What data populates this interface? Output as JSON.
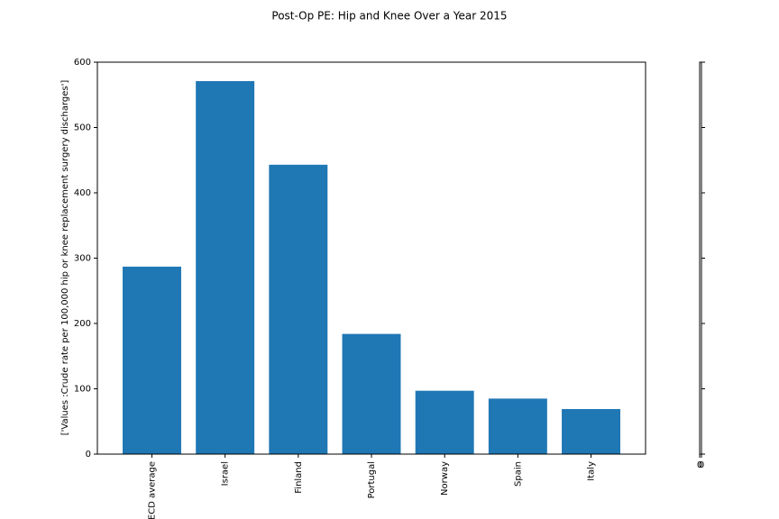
{
  "chart_data": [
    {
      "type": "bar",
      "title": "Post-Op PE: Hip and Knee Over a Year 2015",
      "y_label": "['Values :Crude rate per 100,000 hip or knee replacement surgery discharges']",
      "categories": [
        "OECD average",
        "Israel",
        "Finland",
        "Portugal",
        "Norway",
        "Spain",
        "Italy"
      ],
      "values": [
        287,
        571,
        443,
        184,
        97,
        85,
        69
      ],
      "color": "#1f77b4",
      "ylim": [
        0,
        600
      ],
      "yticks": [
        0,
        100,
        200,
        300,
        400,
        500,
        600
      ]
    },
    {
      "type": "empty",
      "xticks": [
        0,
        0
      ],
      "ylim": [
        0,
        600
      ],
      "yticks": [
        0,
        100,
        200,
        300,
        400,
        500,
        600
      ]
    }
  ]
}
